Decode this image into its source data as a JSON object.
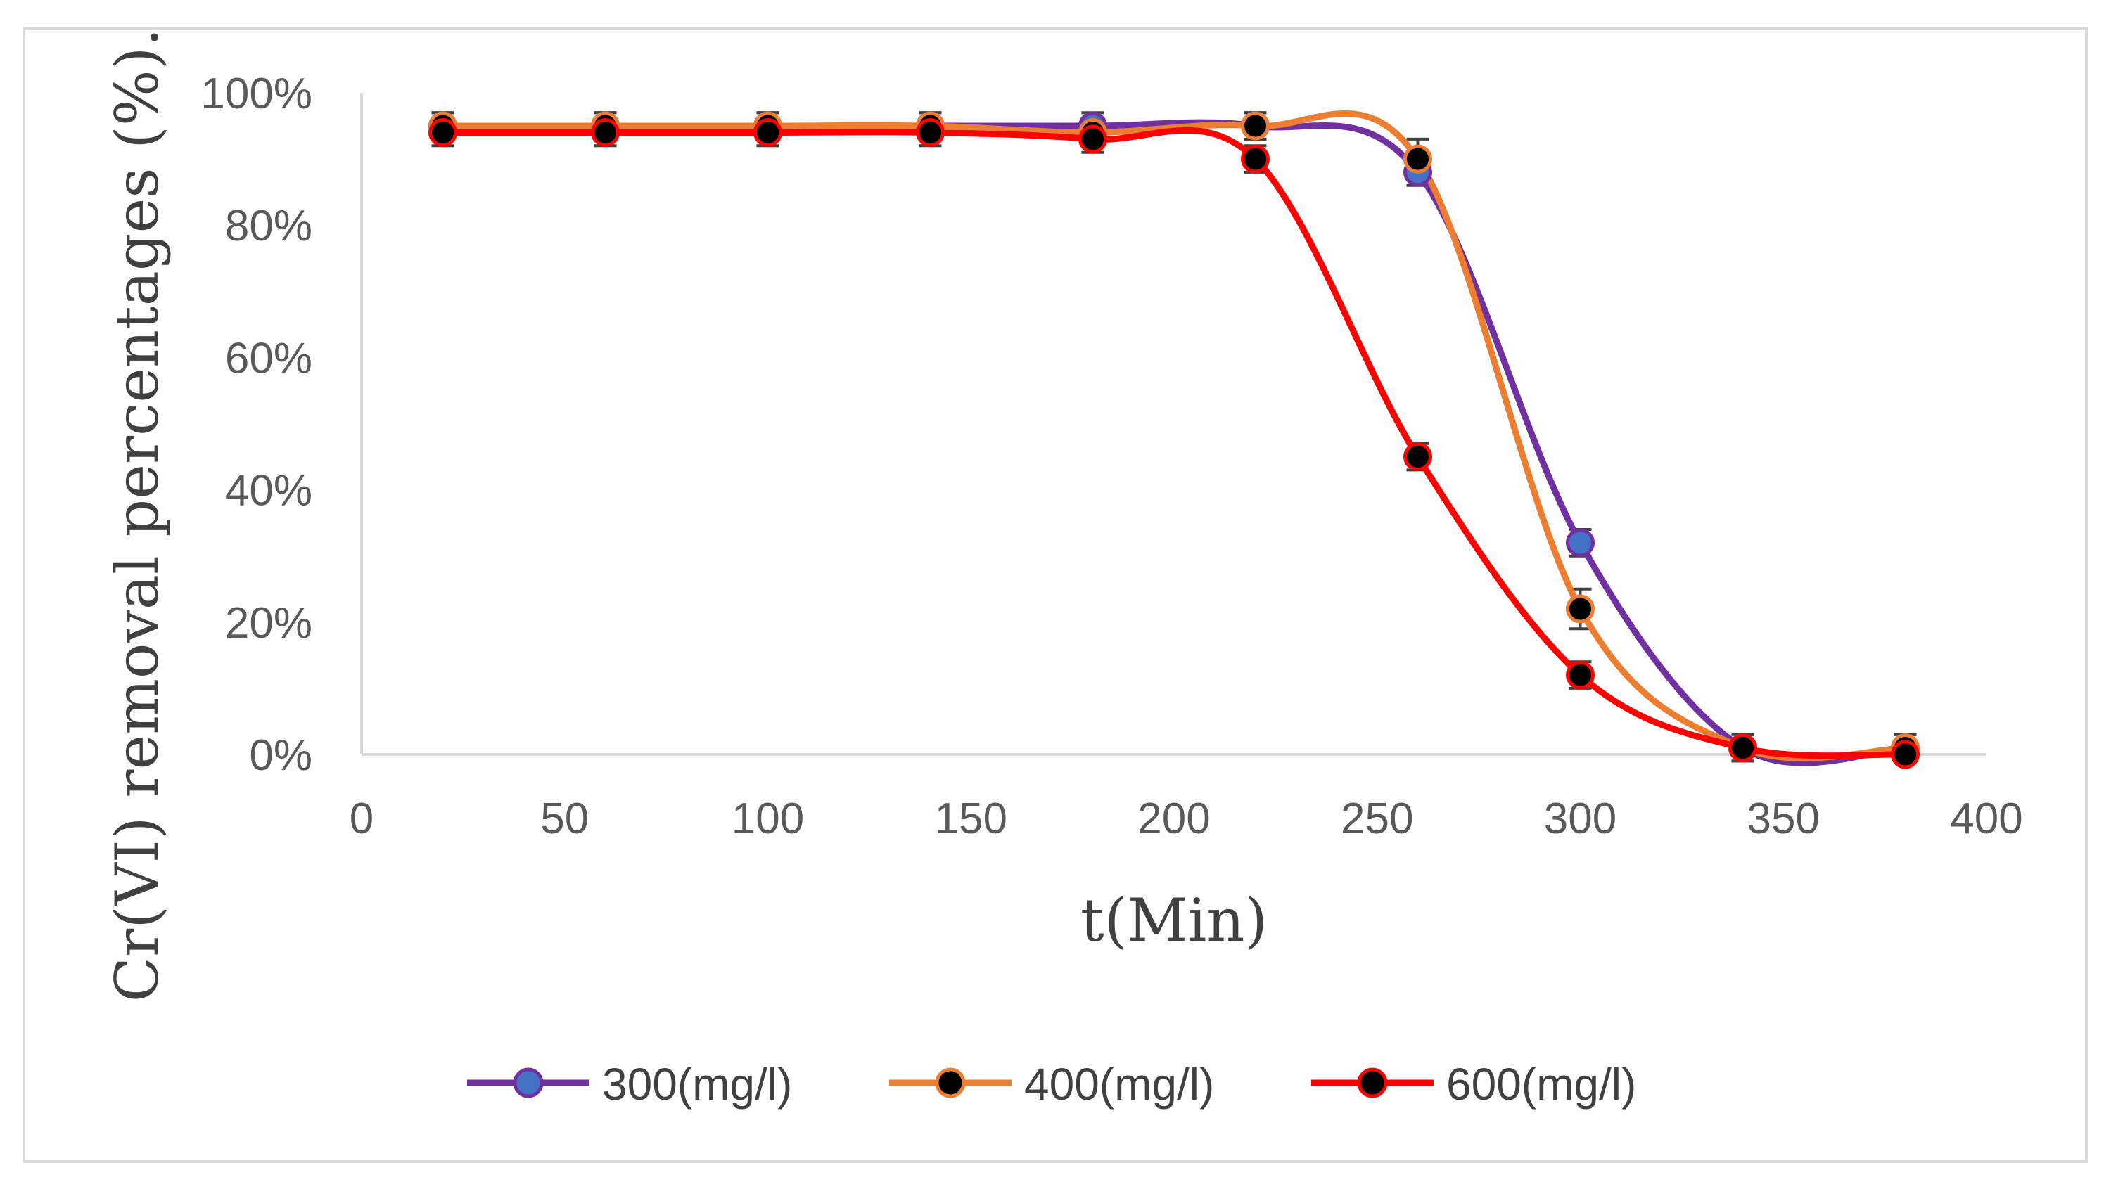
{
  "chart_data": {
    "type": "line",
    "title": "",
    "xlabel": "t(Min)",
    "ylabel": "Cr(VI) removal percentages (%).",
    "xlim": [
      0,
      400
    ],
    "ylim": [
      0,
      100
    ],
    "x_ticks": [
      "0",
      "50",
      "100",
      "150",
      "200",
      "250",
      "300",
      "350",
      "400"
    ],
    "y_ticks": [
      "0%",
      "20%",
      "40%",
      "60%",
      "80%",
      "100%"
    ],
    "grid": false,
    "legend_position": "bottom",
    "x": [
      20,
      60,
      100,
      140,
      180,
      220,
      260,
      300,
      340,
      380
    ],
    "series": [
      {
        "name": "300(mg/l)",
        "line_color": "#7030a0",
        "marker_fill": "#4472c4",
        "values": [
          95,
          95,
          95,
          95,
          95,
          95,
          88,
          32,
          1,
          1
        ],
        "errors": [
          2,
          2,
          2,
          2,
          2,
          2,
          2,
          2,
          2,
          2
        ]
      },
      {
        "name": "400(mg/l)",
        "line_color": "#ed7d31",
        "marker_fill": "#000000",
        "values": [
          95,
          95,
          95,
          95,
          94,
          95,
          90,
          22,
          1,
          1
        ],
        "errors": [
          2,
          2,
          2,
          2,
          2,
          2,
          3,
          3,
          2,
          2
        ]
      },
      {
        "name": "600(mg/l)",
        "line_color": "#ff0000",
        "marker_fill": "#000000",
        "values": [
          94,
          94,
          94,
          94,
          93,
          90,
          45,
          12,
          1,
          0
        ],
        "errors": [
          2,
          2,
          2,
          2,
          2,
          2,
          2,
          2,
          1,
          1
        ]
      }
    ]
  }
}
